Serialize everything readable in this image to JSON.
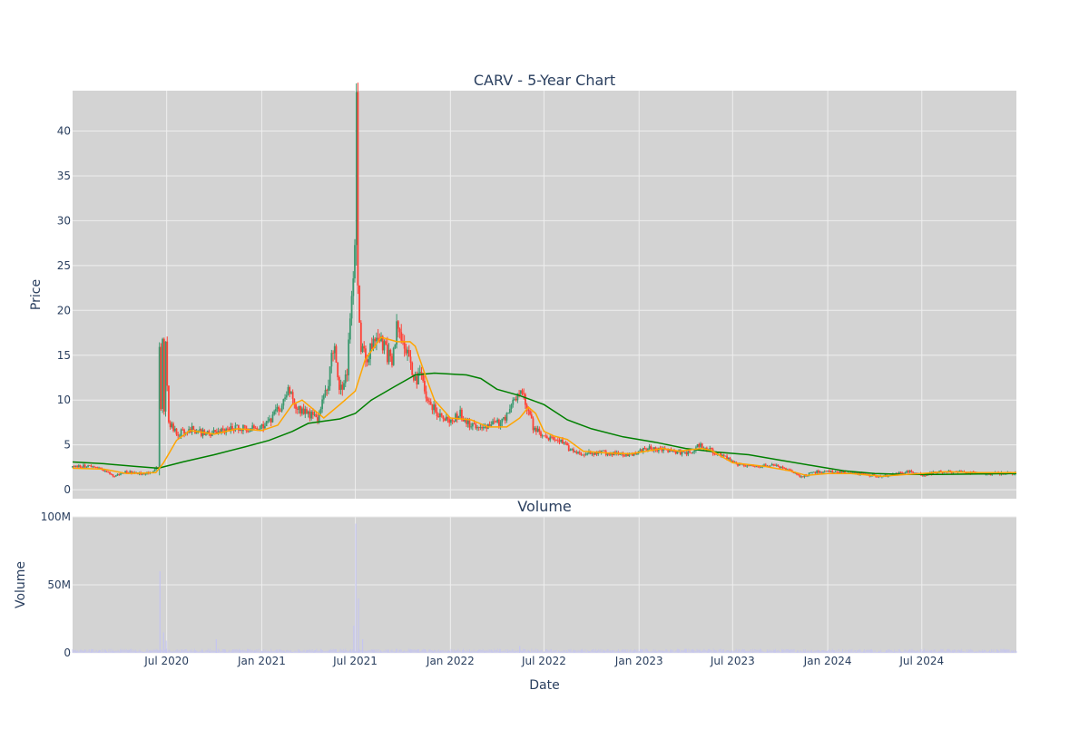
{
  "colors": {
    "plot_bg": "#d3d3d3",
    "grid": "#eeeeee",
    "increasing": "#3d9970",
    "decreasing": "#ff4136",
    "ma_short": "#ffa500",
    "ma_long": "#008000",
    "volume_bar": "#c5c5f0",
    "text": "#2a3f5f"
  },
  "chart_data": [
    {
      "type": "candlestick",
      "title": "CARV - 5-Year Chart",
      "ylabel": "Price",
      "ylim": [
        -1,
        44.5
      ],
      "yticks": [
        0,
        5,
        10,
        15,
        20,
        25,
        30,
        35,
        40
      ],
      "xlim": [
        "2020-01-01",
        "2024-12-31"
      ],
      "xticks": [
        "2020-07-01",
        "2021-01-01",
        "2021-07-01",
        "2022-01-01",
        "2022-07-01",
        "2023-01-01",
        "2023-07-01",
        "2024-01-01",
        "2024-07-01"
      ],
      "grid": true,
      "price_path": [
        [
          "2020-01-01",
          2.5
        ],
        [
          "2020-02-01",
          2.7
        ],
        [
          "2020-03-01",
          2.2
        ],
        [
          "2020-03-20",
          1.5
        ],
        [
          "2020-04-15",
          2.0
        ],
        [
          "2020-05-15",
          1.8
        ],
        [
          "2020-06-01",
          2.0
        ],
        [
          "2020-06-15",
          2.5
        ],
        [
          "2020-06-18",
          22.8
        ],
        [
          "2020-06-20",
          9
        ],
        [
          "2020-06-23",
          17.5
        ],
        [
          "2020-06-26",
          8.5
        ],
        [
          "2020-06-29",
          15.8
        ],
        [
          "2020-07-05",
          7.5
        ],
        [
          "2020-07-20",
          6.2
        ],
        [
          "2020-08-15",
          6.8
        ],
        [
          "2020-09-15",
          6.2
        ],
        [
          "2020-10-15",
          6.5
        ],
        [
          "2020-11-15",
          7.0
        ],
        [
          "2020-12-15",
          6.8
        ],
        [
          "2021-01-15",
          7.5
        ],
        [
          "2021-02-10",
          9.5
        ],
        [
          "2021-02-20",
          11.5
        ],
        [
          "2021-03-01",
          10.0
        ],
        [
          "2021-03-15",
          9.0
        ],
        [
          "2021-04-01",
          8.5
        ],
        [
          "2021-04-20",
          8.0
        ],
        [
          "2021-05-10",
          12.0
        ],
        [
          "2021-05-20",
          16.5
        ],
        [
          "2021-06-01",
          11.0
        ],
        [
          "2021-06-15",
          13.0
        ],
        [
          "2021-07-01",
          28.0
        ],
        [
          "2021-07-03",
          42.5
        ],
        [
          "2021-07-06",
          22.0
        ],
        [
          "2021-07-12",
          16.0
        ],
        [
          "2021-07-25",
          14.5
        ],
        [
          "2021-08-10",
          17.5
        ],
        [
          "2021-08-25",
          16.0
        ],
        [
          "2021-09-10",
          14.0
        ],
        [
          "2021-09-20",
          18.5
        ],
        [
          "2021-10-05",
          16.5
        ],
        [
          "2021-10-15",
          14.5
        ],
        [
          "2021-10-25",
          12.0
        ],
        [
          "2021-11-05",
          12.8
        ],
        [
          "2021-11-20",
          9.5
        ],
        [
          "2021-12-10",
          8.5
        ],
        [
          "2022-01-01",
          7.5
        ],
        [
          "2022-01-20",
          8.5
        ],
        [
          "2022-02-10",
          7.0
        ],
        [
          "2022-03-10",
          7.2
        ],
        [
          "2022-04-10",
          7.5
        ],
        [
          "2022-05-01",
          9.5
        ],
        [
          "2022-05-15",
          11.5
        ],
        [
          "2022-05-25",
          10.0
        ],
        [
          "2022-06-10",
          7.0
        ],
        [
          "2022-07-01",
          5.8
        ],
        [
          "2022-08-01",
          5.5
        ],
        [
          "2022-08-20",
          4.5
        ],
        [
          "2022-09-15",
          4.0
        ],
        [
          "2022-10-15",
          4.2
        ],
        [
          "2022-11-15",
          4.0
        ],
        [
          "2022-12-15",
          3.9
        ],
        [
          "2023-01-15",
          4.6
        ],
        [
          "2023-02-15",
          4.5
        ],
        [
          "2023-03-20",
          4.2
        ],
        [
          "2023-04-15",
          4.0
        ],
        [
          "2023-04-25",
          5.0
        ],
        [
          "2023-05-15",
          4.5
        ],
        [
          "2023-06-10",
          3.8
        ],
        [
          "2023-07-10",
          2.8
        ],
        [
          "2023-08-15",
          2.6
        ],
        [
          "2023-09-15",
          2.8
        ],
        [
          "2023-10-15",
          2.2
        ],
        [
          "2023-11-10",
          1.5
        ],
        [
          "2023-12-10",
          2.0
        ],
        [
          "2024-01-15",
          2.0
        ],
        [
          "2024-02-15",
          1.8
        ],
        [
          "2024-03-15",
          1.7
        ],
        [
          "2024-04-15",
          1.5
        ],
        [
          "2024-05-15",
          1.8
        ],
        [
          "2024-06-10",
          2.1
        ],
        [
          "2024-07-01",
          1.6
        ],
        [
          "2024-08-01",
          2.0
        ],
        [
          "2024-09-01",
          2.0
        ],
        [
          "2024-10-01",
          1.9
        ],
        [
          "2024-11-01",
          1.8
        ],
        [
          "2024-12-31",
          1.9
        ]
      ],
      "moving_average_short": [
        [
          "2020-01-01",
          2.4
        ],
        [
          "2020-03-01",
          2.3
        ],
        [
          "2020-04-15",
          1.8
        ],
        [
          "2020-06-10",
          1.9
        ],
        [
          "2020-06-25",
          3.0
        ],
        [
          "2020-07-20",
          5.5
        ],
        [
          "2020-08-15",
          6.6
        ],
        [
          "2020-10-01",
          6.2
        ],
        [
          "2020-11-15",
          6.8
        ],
        [
          "2021-01-01",
          6.6
        ],
        [
          "2021-02-01",
          7.2
        ],
        [
          "2021-03-01",
          9.5
        ],
        [
          "2021-03-20",
          10.0
        ],
        [
          "2021-04-10",
          9.0
        ],
        [
          "2021-05-01",
          8.0
        ],
        [
          "2021-06-01",
          9.5
        ],
        [
          "2021-07-01",
          11.0
        ],
        [
          "2021-07-20",
          14.5
        ],
        [
          "2021-08-20",
          17.0
        ],
        [
          "2021-09-20",
          16.5
        ],
        [
          "2021-10-15",
          16.5
        ],
        [
          "2021-10-25",
          16.0
        ],
        [
          "2021-11-15",
          12.5
        ],
        [
          "2021-12-01",
          10.0
        ],
        [
          "2022-01-01",
          8.0
        ],
        [
          "2022-02-10",
          7.8
        ],
        [
          "2022-03-15",
          7.0
        ],
        [
          "2022-04-20",
          7.0
        ],
        [
          "2022-05-15",
          8.0
        ],
        [
          "2022-06-01",
          9.2
        ],
        [
          "2022-06-15",
          8.5
        ],
        [
          "2022-07-01",
          6.5
        ],
        [
          "2022-07-20",
          6.0
        ],
        [
          "2022-08-15",
          5.6
        ],
        [
          "2022-09-15",
          4.3
        ],
        [
          "2022-11-01",
          4.1
        ],
        [
          "2022-12-15",
          4.0
        ],
        [
          "2023-01-15",
          4.3
        ],
        [
          "2023-02-15",
          4.6
        ],
        [
          "2023-03-20",
          4.3
        ],
        [
          "2023-05-01",
          4.6
        ],
        [
          "2023-05-20",
          4.4
        ],
        [
          "2023-07-01",
          3.0
        ],
        [
          "2023-09-01",
          2.6
        ],
        [
          "2023-10-20",
          2.1
        ],
        [
          "2023-11-20",
          1.6
        ],
        [
          "2024-01-01",
          1.8
        ],
        [
          "2024-02-15",
          1.8
        ],
        [
          "2024-04-15",
          1.5
        ],
        [
          "2024-06-01",
          1.7
        ],
        [
          "2024-07-01",
          1.8
        ],
        [
          "2024-08-15",
          2.0
        ],
        [
          "2024-10-15",
          1.9
        ],
        [
          "2024-12-31",
          1.9
        ]
      ],
      "moving_average_long": [
        [
          "2020-01-01",
          3.1
        ],
        [
          "2020-03-01",
          2.9
        ],
        [
          "2020-05-01",
          2.6
        ],
        [
          "2020-06-15",
          2.4
        ],
        [
          "2020-08-01",
          3.1
        ],
        [
          "2020-10-01",
          3.9
        ],
        [
          "2020-12-01",
          4.8
        ],
        [
          "2021-01-15",
          5.5
        ],
        [
          "2021-03-01",
          6.5
        ],
        [
          "2021-04-01",
          7.4
        ],
        [
          "2021-06-01",
          7.9
        ],
        [
          "2021-07-01",
          8.5
        ],
        [
          "2021-08-01",
          10.0
        ],
        [
          "2021-09-15",
          11.5
        ],
        [
          "2021-10-25",
          12.8
        ],
        [
          "2021-12-01",
          13.0
        ],
        [
          "2022-01-01",
          12.9
        ],
        [
          "2022-02-01",
          12.8
        ],
        [
          "2022-03-01",
          12.4
        ],
        [
          "2022-04-01",
          11.2
        ],
        [
          "2022-05-15",
          10.5
        ],
        [
          "2022-07-01",
          9.5
        ],
        [
          "2022-08-15",
          7.8
        ],
        [
          "2022-10-01",
          6.8
        ],
        [
          "2022-12-01",
          5.9
        ],
        [
          "2023-02-01",
          5.3
        ],
        [
          "2023-04-01",
          4.6
        ],
        [
          "2023-06-01",
          4.2
        ],
        [
          "2023-08-01",
          3.9
        ],
        [
          "2023-10-01",
          3.3
        ],
        [
          "2023-12-01",
          2.7
        ],
        [
          "2024-02-01",
          2.1
        ],
        [
          "2024-04-01",
          1.8
        ],
        [
          "2024-06-01",
          1.7
        ],
        [
          "2024-08-01",
          1.7
        ],
        [
          "2024-12-31",
          1.8
        ]
      ]
    },
    {
      "type": "bar",
      "title": "Volume",
      "xlabel": "Date",
      "ylabel": "Volume",
      "ylim": [
        0,
        100000000
      ],
      "yticks": [
        0,
        50000000,
        100000000
      ],
      "ytick_labels": [
        "0",
        "50M",
        "100M"
      ],
      "xticks": [
        "2020-07-01",
        "2021-01-01",
        "2021-07-01",
        "2022-01-01",
        "2022-07-01",
        "2023-01-01",
        "2023-07-01",
        "2024-01-01",
        "2024-07-01"
      ],
      "xtick_labels": [
        "Jul 2020",
        "Jan 2021",
        "Jul 2021",
        "Jan 2022",
        "Jul 2022",
        "Jan 2023",
        "Jul 2023",
        "Jan 2024",
        "Jul 2024"
      ],
      "volume_spikes": [
        [
          "2020-06-18",
          60000000
        ],
        [
          "2020-06-25",
          15000000
        ],
        [
          "2020-06-30",
          9000000
        ],
        [
          "2020-10-05",
          10000000
        ],
        [
          "2021-06-28",
          20000000
        ],
        [
          "2021-07-02",
          95000000
        ],
        [
          "2021-07-07",
          40000000
        ],
        [
          "2021-07-15",
          10000000
        ],
        [
          "2022-05-15",
          5000000
        ]
      ],
      "volume_baseline": 2000000
    }
  ]
}
